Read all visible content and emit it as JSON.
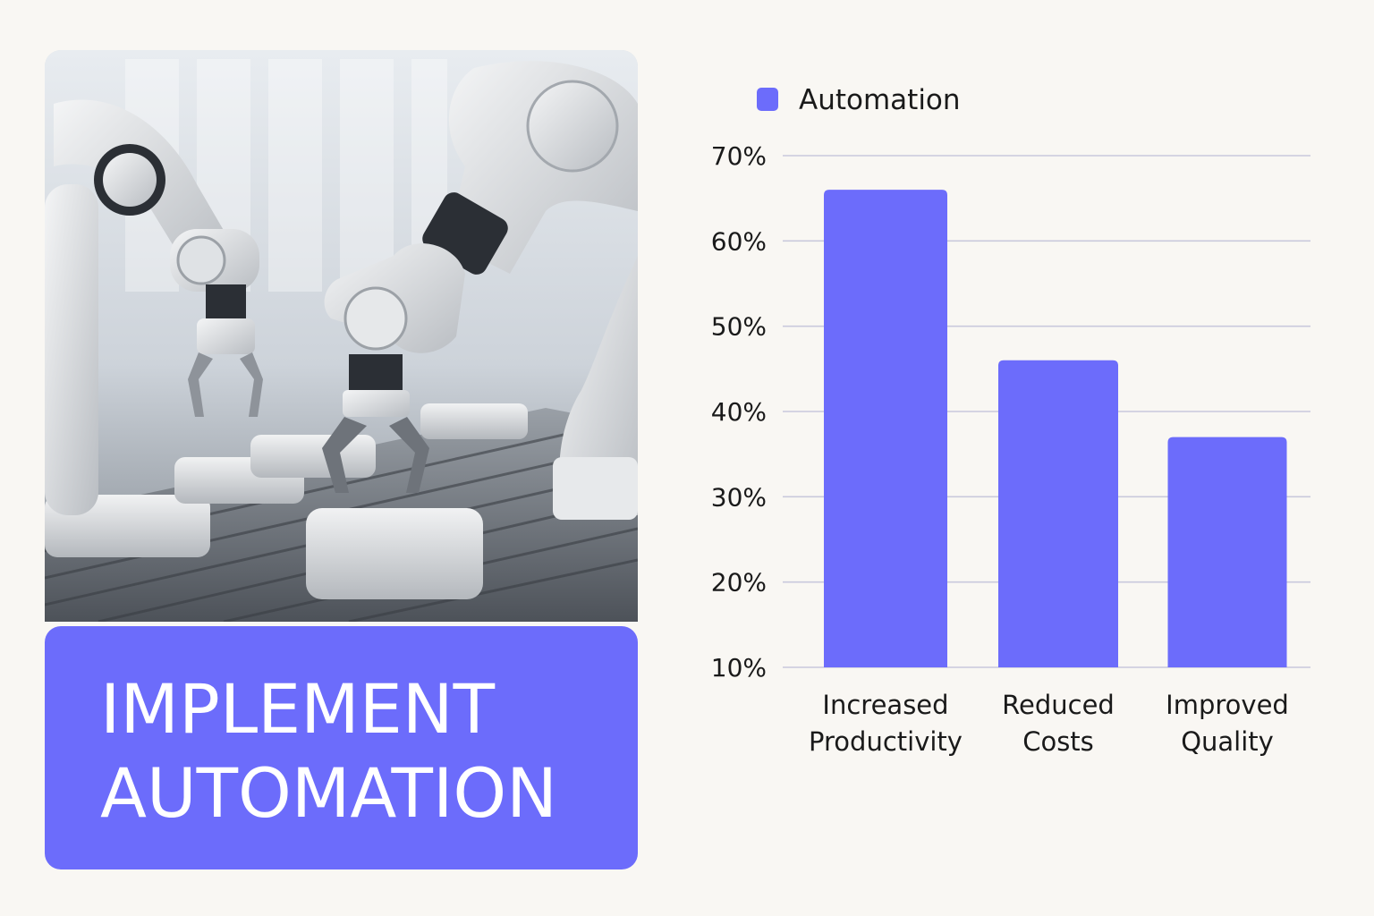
{
  "title": {
    "line1": "IMPLEMENT",
    "line2": "AUTOMATION"
  },
  "photo": {
    "icon": "industrial-robot-arms-photo"
  },
  "colors": {
    "accent": "#6c6cfb",
    "background": "#f9f7f3",
    "grid": "#c9c9dc",
    "text": "#1a1a1a"
  },
  "chart_data": {
    "type": "bar",
    "categories": [
      [
        "Increased",
        "Productivity"
      ],
      [
        "Reduced",
        "Costs"
      ],
      [
        "Improved",
        "Quality"
      ]
    ],
    "series": [
      {
        "name": "Automation",
        "values": [
          66,
          46,
          37
        ]
      }
    ],
    "yticks": [
      "10%",
      "20%",
      "30%",
      "40%",
      "50%",
      "60%",
      "70%"
    ],
    "ylim": [
      10,
      70
    ],
    "grid": true,
    "legend": "top-left"
  }
}
